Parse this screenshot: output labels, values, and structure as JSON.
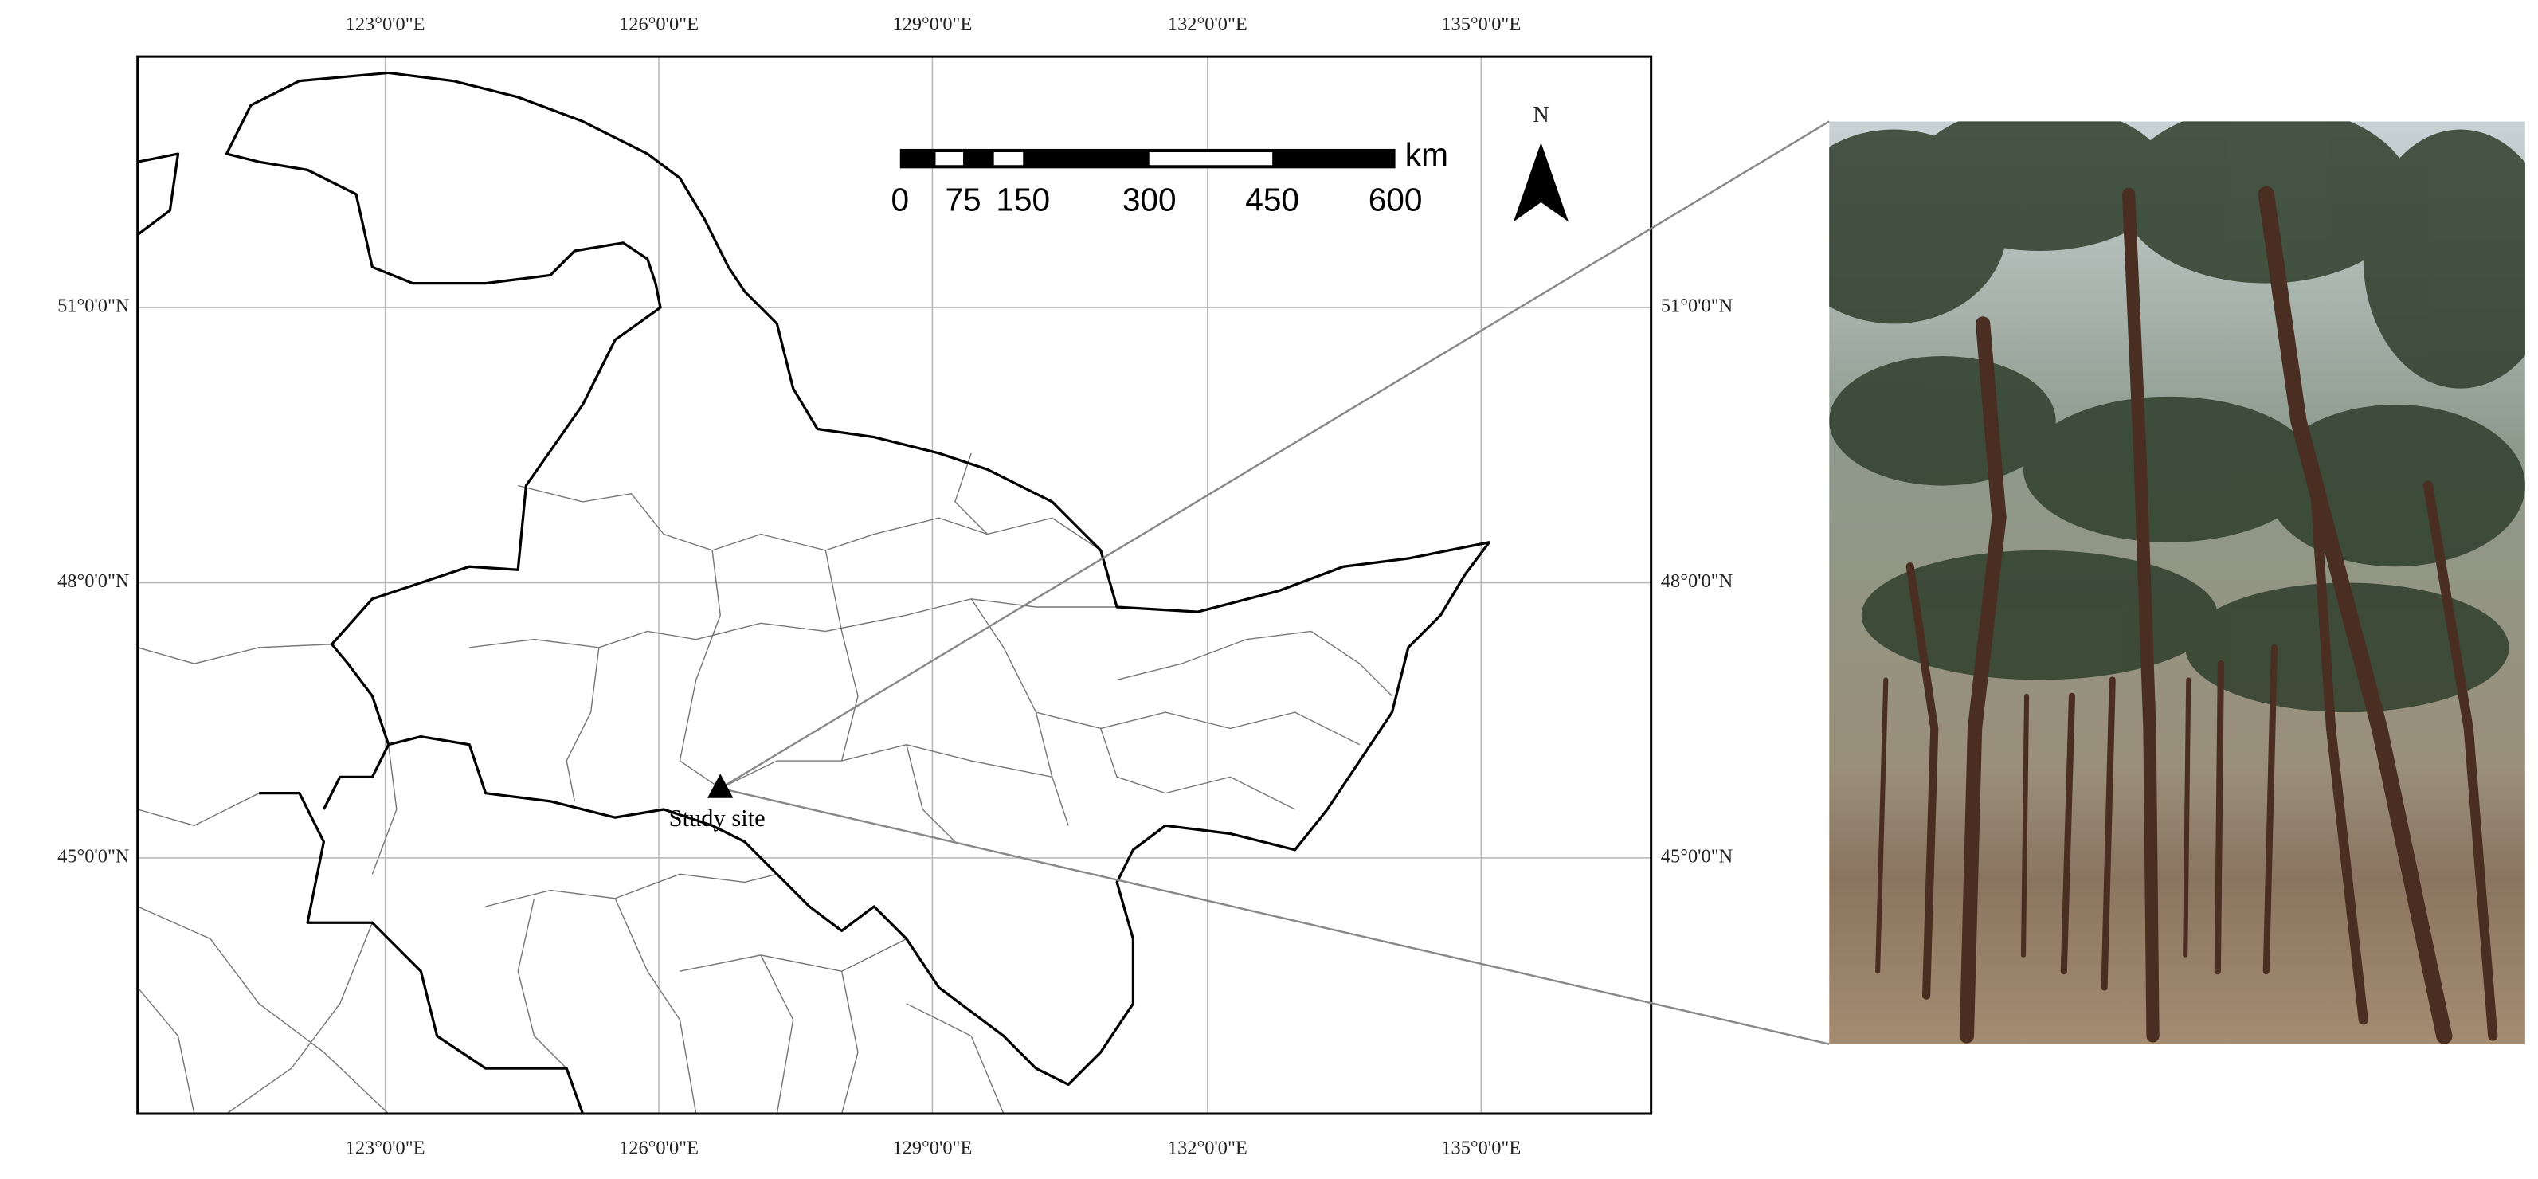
{
  "map": {
    "top_ticks": [
      "123°0'0\"E",
      "126°0'0\"E",
      "129°0'0\"E",
      "132°0'0\"E",
      "135°0'0\"E"
    ],
    "bottom_ticks": [
      "123°0'0\"E",
      "126°0'0\"E",
      "129°0'0\"E",
      "132°0'0\"E",
      "135°0'0\"E"
    ],
    "left_ticks": [
      "51°0'0\"N",
      "48°0'0\"N",
      "45°0'0\"N"
    ],
    "right_ticks": [
      "51°0'0\"N",
      "48°0'0\"N",
      "45°0'0\"N"
    ],
    "scale_bar": {
      "labels": [
        "0",
        "75",
        "150",
        "300",
        "450",
        "600"
      ],
      "unit": "km"
    },
    "north": "N",
    "site_label": "Study site"
  }
}
